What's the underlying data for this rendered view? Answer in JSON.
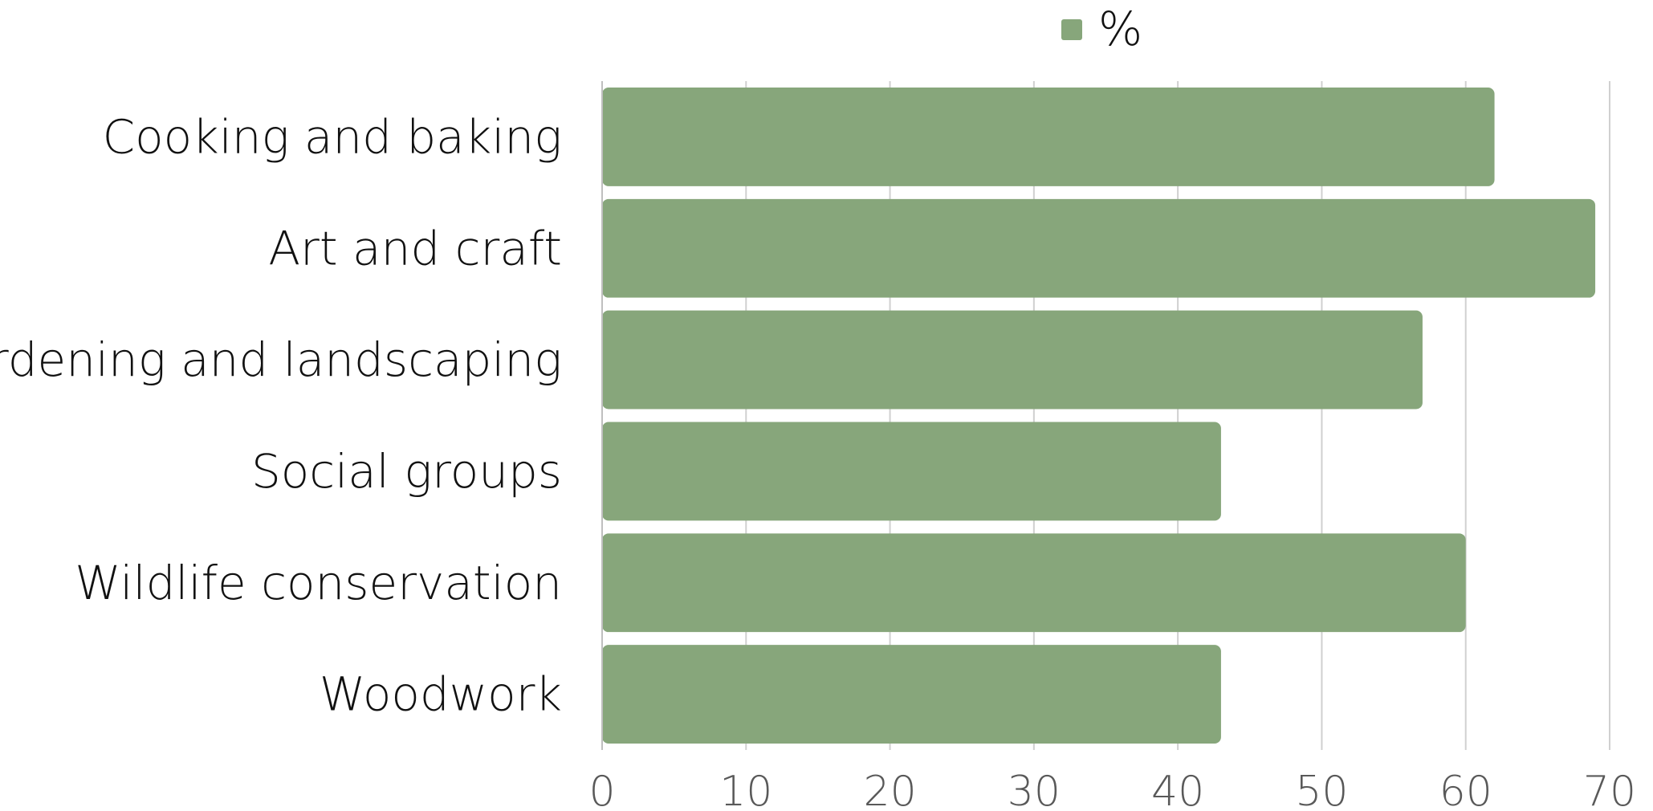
{
  "chart_data": {
    "type": "bar",
    "orientation": "horizontal",
    "categories": [
      "Cooking and baking",
      "Art and craft",
      "Gardening and landscaping",
      "Social groups",
      "Wildlife conservation",
      "Woodwork"
    ],
    "series": [
      {
        "name": "%",
        "values": [
          62,
          69,
          57,
          43,
          60,
          43
        ],
        "color": "#87a67b"
      }
    ],
    "xlim": [
      0,
      70
    ],
    "xticks": [
      0,
      10,
      20,
      30,
      40,
      50,
      60,
      70
    ],
    "grid": "vertical",
    "legend_position": "top-center",
    "title": "",
    "xlabel": "",
    "ylabel": ""
  }
}
